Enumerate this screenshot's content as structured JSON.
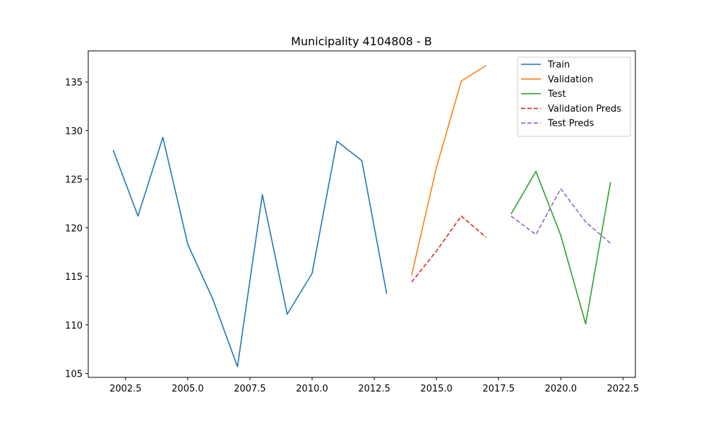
{
  "chart_data": {
    "type": "line",
    "title": "Municipality 4104808 - B",
    "xlabel": "",
    "ylabel": "",
    "xlim": [
      2001.0,
      2023.0
    ],
    "ylim": [
      104.6,
      138.2
    ],
    "x_ticks": [
      2002.5,
      2005.0,
      2007.5,
      2010.0,
      2012.5,
      2015.0,
      2017.5,
      2020.0,
      2022.5
    ],
    "x_tick_labels": [
      "2002.5",
      "2005.0",
      "2007.5",
      "2010.0",
      "2012.5",
      "2015.0",
      "2017.5",
      "2020.0",
      "2022.5"
    ],
    "y_ticks": [
      105,
      110,
      115,
      120,
      125,
      130,
      135
    ],
    "y_tick_labels": [
      "105",
      "110",
      "115",
      "120",
      "125",
      "130",
      "135"
    ],
    "grid": false,
    "legend_position": "top-right",
    "series": [
      {
        "name": "Train",
        "color": "#1f77b4",
        "dash": false,
        "x": [
          2002,
          2003,
          2004,
          2005,
          2006,
          2007,
          2008,
          2009,
          2010,
          2011,
          2012,
          2013
        ],
        "y": [
          128.0,
          121.2,
          129.3,
          118.3,
          112.7,
          105.7,
          123.4,
          111.1,
          115.3,
          128.9,
          126.9,
          113.2
        ]
      },
      {
        "name": "Validation",
        "color": "#ff7f0e",
        "dash": false,
        "x": [
          2014,
          2015,
          2016,
          2017
        ],
        "y": [
          115.1,
          126.2,
          135.1,
          136.7
        ]
      },
      {
        "name": "Test",
        "color": "#2ca02c",
        "dash": false,
        "x": [
          2018,
          2019,
          2020,
          2021,
          2022
        ],
        "y": [
          121.4,
          125.8,
          119.2,
          110.1,
          124.7
        ]
      },
      {
        "name": "Validation Preds",
        "color": "#d62728",
        "dash": true,
        "x": [
          2014,
          2015,
          2016,
          2017
        ],
        "y": [
          114.4,
          117.6,
          121.2,
          119.0
        ]
      },
      {
        "name": "Test Preds",
        "color": "#9467bd",
        "dash": true,
        "x": [
          2018,
          2019,
          2020,
          2021,
          2022
        ],
        "y": [
          121.2,
          119.3,
          124.0,
          120.6,
          118.4
        ]
      }
    ]
  }
}
